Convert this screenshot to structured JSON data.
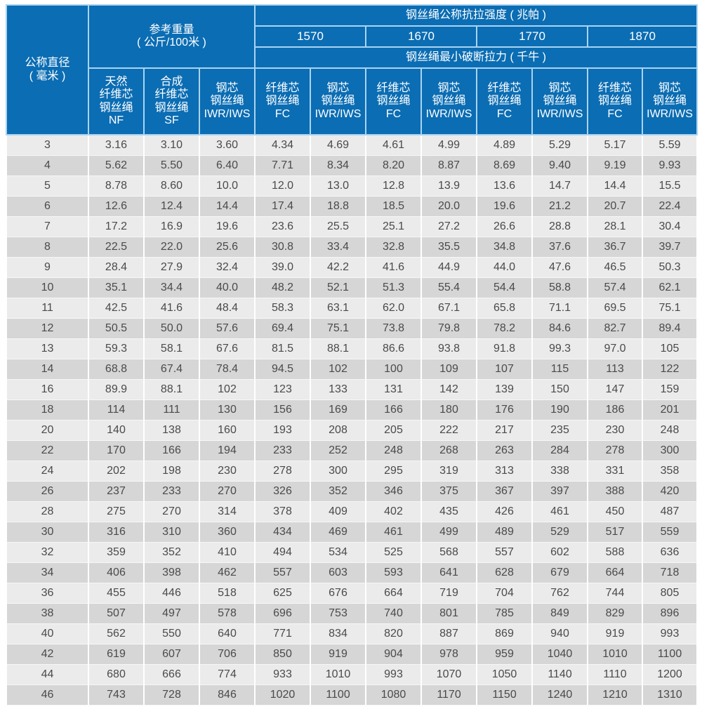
{
  "table": {
    "header": {
      "diameter": {
        "line1": "公称直径",
        "line2": "( 毫米 )"
      },
      "weight": {
        "line1": "参考重量",
        "line2": "( 公斤/100米 )"
      },
      "tensile_strength": "钢丝绳公称抗拉强度 ( 兆帕 )",
      "grades": [
        "1570",
        "1670",
        "1770",
        "1870"
      ],
      "breaking_force": "钢丝绳最小破断拉力 ( 千牛 )",
      "weight_cols": [
        {
          "lines": [
            "天然",
            "纤维芯",
            "钢丝绳",
            "NF"
          ]
        },
        {
          "lines": [
            "合成",
            "纤维芯",
            "钢丝绳",
            "SF"
          ]
        },
        {
          "lines": [
            "钢芯",
            "钢丝绳",
            "IWR/IWS"
          ]
        }
      ],
      "force_cols": [
        {
          "lines": [
            "纤维芯",
            "钢丝绳",
            "FC"
          ]
        },
        {
          "lines": [
            "钢芯",
            "钢丝绳",
            "IWR/IWS"
          ]
        }
      ]
    },
    "colors": {
      "header_bg": "#0b6db3",
      "header_border": "#a9d4f2",
      "row_light": "#ebebeb",
      "row_dark": "#d6d6d6",
      "text": "#4a4a4a"
    },
    "rows": [
      [
        "3",
        "3.16",
        "3.10",
        "3.60",
        "4.34",
        "4.69",
        "4.61",
        "4.99",
        "4.89",
        "5.29",
        "5.17",
        "5.59"
      ],
      [
        "4",
        "5.62",
        "5.50",
        "6.40",
        "7.71",
        "8.34",
        "8.20",
        "8.87",
        "8.69",
        "9.40",
        "9.19",
        "9.93"
      ],
      [
        "5",
        "8.78",
        "8.60",
        "10.0",
        "12.0",
        "13.0",
        "12.8",
        "13.9",
        "13.6",
        "14.7",
        "14.4",
        "15.5"
      ],
      [
        "6",
        "12.6",
        "12.4",
        "14.4",
        "17.4",
        "18.8",
        "18.5",
        "20.0",
        "19.6",
        "21.2",
        "20.7",
        "22.4"
      ],
      [
        "7",
        "17.2",
        "16.9",
        "19.6",
        "23.6",
        "25.5",
        "25.1",
        "27.2",
        "26.6",
        "28.8",
        "28.1",
        "30.4"
      ],
      [
        "8",
        "22.5",
        "22.0",
        "25.6",
        "30.8",
        "33.4",
        "32.8",
        "35.5",
        "34.8",
        "37.6",
        "36.7",
        "39.7"
      ],
      [
        "9",
        "28.4",
        "27.9",
        "32.4",
        "39.0",
        "42.2",
        "41.6",
        "44.9",
        "44.0",
        "47.6",
        "46.5",
        "50.3"
      ],
      [
        "10",
        "35.1",
        "34.4",
        "40.0",
        "48.2",
        "52.1",
        "51.3",
        "55.4",
        "54.4",
        "58.8",
        "57.4",
        "62.1"
      ],
      [
        "11",
        "42.5",
        "41.6",
        "48.4",
        "58.3",
        "63.1",
        "62.0",
        "67.1",
        "65.8",
        "71.1",
        "69.5",
        "75.1"
      ],
      [
        "12",
        "50.5",
        "50.0",
        "57.6",
        "69.4",
        "75.1",
        "73.8",
        "79.8",
        "78.2",
        "84.6",
        "82.7",
        "89.4"
      ],
      [
        "13",
        "59.3",
        "58.1",
        "67.6",
        "81.5",
        "88.1",
        "86.6",
        "93.8",
        "91.8",
        "99.3",
        "97.0",
        "105"
      ],
      [
        "14",
        "68.8",
        "67.4",
        "78.4",
        "94.5",
        "102",
        "100",
        "109",
        "107",
        "115",
        "113",
        "122"
      ],
      [
        "16",
        "89.9",
        "88.1",
        "102",
        "123",
        "133",
        "131",
        "142",
        "139",
        "150",
        "147",
        "159"
      ],
      [
        "18",
        "114",
        "111",
        "130",
        "156",
        "169",
        "166",
        "180",
        "176",
        "190",
        "186",
        "201"
      ],
      [
        "20",
        "140",
        "138",
        "160",
        "193",
        "208",
        "205",
        "222",
        "217",
        "235",
        "230",
        "248"
      ],
      [
        "22",
        "170",
        "166",
        "194",
        "233",
        "252",
        "248",
        "268",
        "263",
        "284",
        "278",
        "300"
      ],
      [
        "24",
        "202",
        "198",
        "230",
        "278",
        "300",
        "295",
        "319",
        "313",
        "338",
        "331",
        "358"
      ],
      [
        "26",
        "237",
        "233",
        "270",
        "326",
        "352",
        "346",
        "375",
        "367",
        "397",
        "388",
        "420"
      ],
      [
        "28",
        "275",
        "270",
        "314",
        "378",
        "409",
        "402",
        "435",
        "426",
        "461",
        "450",
        "487"
      ],
      [
        "30",
        "316",
        "310",
        "360",
        "434",
        "469",
        "461",
        "499",
        "489",
        "529",
        "517",
        "559"
      ],
      [
        "32",
        "359",
        "352",
        "410",
        "494",
        "534",
        "525",
        "568",
        "557",
        "602",
        "588",
        "636"
      ],
      [
        "34",
        "406",
        "398",
        "462",
        "557",
        "603",
        "593",
        "641",
        "628",
        "679",
        "664",
        "718"
      ],
      [
        "36",
        "455",
        "446",
        "518",
        "625",
        "676",
        "664",
        "719",
        "704",
        "762",
        "744",
        "805"
      ],
      [
        "38",
        "507",
        "497",
        "578",
        "696",
        "753",
        "740",
        "801",
        "785",
        "849",
        "829",
        "896"
      ],
      [
        "40",
        "562",
        "550",
        "640",
        "771",
        "834",
        "820",
        "887",
        "869",
        "940",
        "919",
        "993"
      ],
      [
        "42",
        "619",
        "607",
        "706",
        "850",
        "919",
        "904",
        "978",
        "959",
        "1040",
        "1010",
        "1100"
      ],
      [
        "44",
        "680",
        "666",
        "774",
        "933",
        "1010",
        "993",
        "1070",
        "1050",
        "1140",
        "1110",
        "1200"
      ],
      [
        "46",
        "743",
        "728",
        "846",
        "1020",
        "1100",
        "1080",
        "1170",
        "1150",
        "1240",
        "1210",
        "1310"
      ]
    ]
  }
}
